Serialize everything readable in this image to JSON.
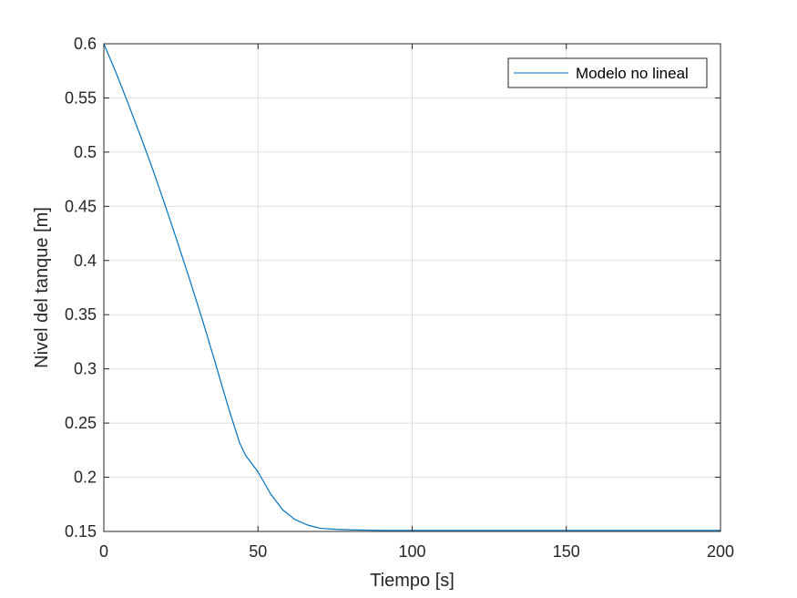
{
  "chart_data": {
    "type": "line",
    "xlabel": "Tiempo [s]",
    "ylabel": "Nivel del tanque [m]",
    "xlim": [
      0,
      200
    ],
    "ylim": [
      0.15,
      0.6
    ],
    "xticks": [
      0,
      50,
      100,
      150,
      200
    ],
    "xtick_labels": [
      "0",
      "50",
      "100",
      "150",
      "200"
    ],
    "yticks": [
      0.15,
      0.2,
      0.25,
      0.3,
      0.35,
      0.4,
      0.45,
      0.5,
      0.55,
      0.6
    ],
    "ytick_labels": [
      "0.15",
      "0.2",
      "0.25",
      "0.3",
      "0.35",
      "0.4",
      "0.45",
      "0.5",
      "0.55",
      "0.6"
    ],
    "grid": true,
    "legend": {
      "position": "top-right",
      "entries": [
        "Modelo no lineal"
      ]
    },
    "series": [
      {
        "name": "Modelo no lineal",
        "color": "#0072BD",
        "x": [
          0,
          4,
          8,
          12,
          16,
          20,
          24,
          28,
          32,
          36,
          40,
          44,
          46,
          50,
          54,
          58,
          62,
          66,
          70,
          75,
          80,
          90,
          100,
          150,
          200
        ],
        "y": [
          0.6,
          0.573,
          0.544,
          0.514,
          0.483,
          0.45,
          0.416,
          0.381,
          0.345,
          0.307,
          0.268,
          0.232,
          0.22,
          0.205,
          0.185,
          0.17,
          0.161,
          0.156,
          0.153,
          0.152,
          0.1515,
          0.151,
          0.151,
          0.151,
          0.151
        ]
      }
    ]
  }
}
